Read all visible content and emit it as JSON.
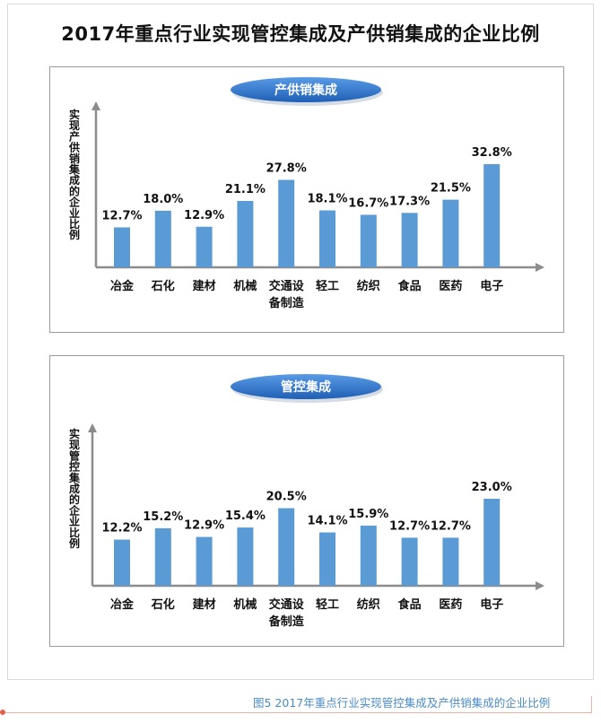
{
  "title": "2017年重点行业实现管控集成及产供销集成的企业比例",
  "caption": "图5   2017年重点行业实现管控集成及产供销集成的企业比例",
  "colors": {
    "bar": "#5b9bd5",
    "axis": "#8c8c8c",
    "pill_fill": "#2e6fc4",
    "pill_text": "#ffffff"
  },
  "chart_data": [
    {
      "type": "bar",
      "title": "产供销集成",
      "ylabel": "实现产供销集成的企业比例",
      "xlabel": "",
      "categories": [
        "冶金",
        "石化",
        "建材",
        "机械",
        "交通设备制造",
        "轻工",
        "纺织",
        "食品",
        "医药",
        "电子"
      ],
      "category_lines": [
        [
          "冶金"
        ],
        [
          "石化"
        ],
        [
          "建材"
        ],
        [
          "机械"
        ],
        [
          "交通设",
          "备制造"
        ],
        [
          "轻工"
        ],
        [
          "纺织"
        ],
        [
          "食品"
        ],
        [
          "医药"
        ],
        [
          "电子"
        ]
      ],
      "values": [
        12.7,
        18.0,
        12.9,
        21.1,
        27.8,
        18.1,
        16.7,
        17.3,
        21.5,
        32.8
      ],
      "value_labels": [
        "12.7%",
        "18.0%",
        "12.9%",
        "21.1%",
        "27.8%",
        "18.1%",
        "16.7%",
        "17.3%",
        "21.5%",
        "32.8%"
      ],
      "grid": false
    },
    {
      "type": "bar",
      "title": "管控集成",
      "ylabel": "实现管控集成的企业比例",
      "xlabel": "",
      "categories": [
        "冶金",
        "石化",
        "建材",
        "机械",
        "交通设备制造",
        "轻工",
        "纺织",
        "食品",
        "医药",
        "电子"
      ],
      "category_lines": [
        [
          "冶金"
        ],
        [
          "石化"
        ],
        [
          "建材"
        ],
        [
          "机械"
        ],
        [
          "交通设",
          "备制造"
        ],
        [
          "轻工"
        ],
        [
          "纺织"
        ],
        [
          "食品"
        ],
        [
          "医药"
        ],
        [
          "电子"
        ]
      ],
      "values": [
        12.2,
        15.2,
        12.9,
        15.4,
        20.5,
        14.1,
        15.9,
        12.7,
        12.7,
        23.0
      ],
      "value_labels": [
        "12.2%",
        "15.2%",
        "12.9%",
        "15.4%",
        "20.5%",
        "14.1%",
        "15.9%",
        "12.7%",
        "12.7%",
        "23.0%"
      ],
      "grid": false
    }
  ]
}
